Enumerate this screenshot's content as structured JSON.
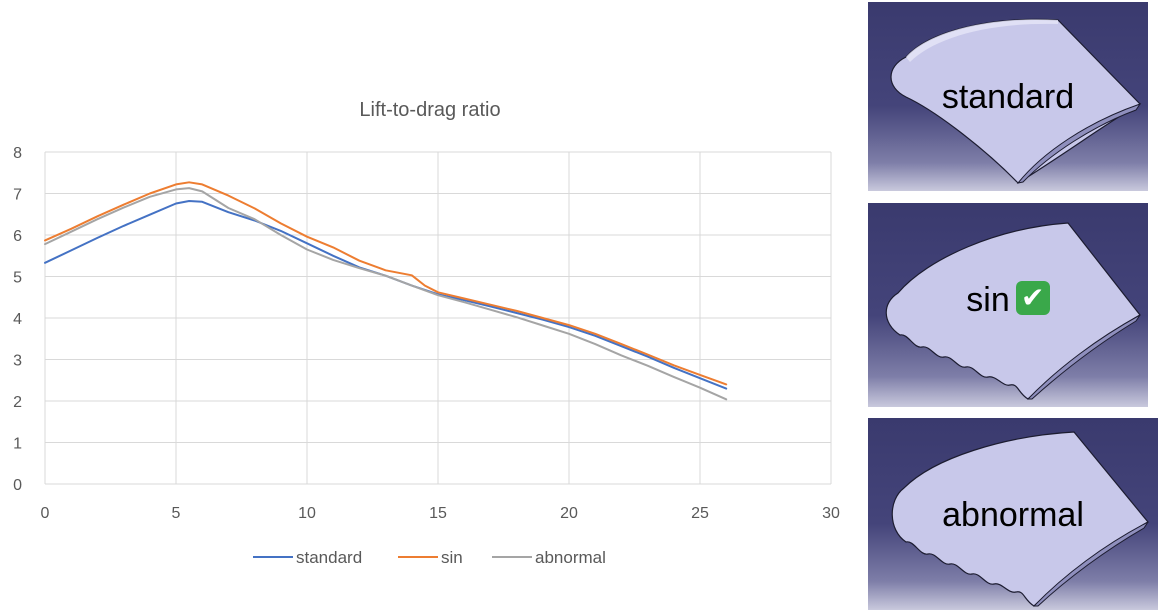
{
  "chart_data": {
    "type": "line",
    "title": "Lift-to-drag ratio",
    "xlabel": "",
    "ylabel": "",
    "xlim": [
      0,
      30
    ],
    "ylim": [
      0,
      8
    ],
    "xticks": [
      0,
      5,
      10,
      15,
      20,
      25,
      30
    ],
    "yticks": [
      0,
      1,
      2,
      3,
      4,
      5,
      6,
      7,
      8
    ],
    "grid": true,
    "legend": "bottom",
    "series": [
      {
        "name": "standard",
        "color": "#4472c4",
        "x": [
          0,
          1,
          2,
          3,
          4,
          5,
          5.5,
          6,
          7,
          8,
          9,
          10,
          11,
          12,
          13,
          14,
          15,
          16,
          17,
          18,
          19,
          20,
          21,
          22,
          23,
          24,
          25,
          26
        ],
        "y": [
          5.33,
          5.63,
          5.93,
          6.22,
          6.49,
          6.76,
          6.82,
          6.8,
          6.55,
          6.35,
          6.1,
          5.8,
          5.5,
          5.22,
          5.02,
          4.78,
          4.57,
          4.43,
          4.28,
          4.12,
          3.96,
          3.78,
          3.57,
          3.32,
          3.07,
          2.8,
          2.55,
          2.3
        ]
      },
      {
        "name": "sin",
        "color": "#ed7d31",
        "x": [
          0,
          1,
          2,
          3,
          4,
          5,
          5.5,
          6,
          7,
          8,
          9,
          10,
          11,
          12,
          13,
          14,
          14.5,
          15,
          16,
          17,
          18,
          19,
          20,
          21,
          22,
          23,
          24,
          25,
          26
        ],
        "y": [
          5.87,
          6.15,
          6.45,
          6.73,
          7.0,
          7.22,
          7.27,
          7.22,
          6.95,
          6.64,
          6.28,
          5.96,
          5.7,
          5.38,
          5.15,
          5.03,
          4.78,
          4.62,
          4.47,
          4.32,
          4.17,
          4.0,
          3.83,
          3.62,
          3.37,
          3.12,
          2.86,
          2.63,
          2.4
        ]
      },
      {
        "name": "abnormal",
        "color": "#a5a5a5",
        "x": [
          0,
          1,
          2,
          3,
          4,
          5,
          5.5,
          6,
          7,
          8,
          9,
          10,
          11,
          12,
          13,
          14,
          15,
          16,
          17,
          18,
          19,
          20,
          21,
          22,
          23,
          24,
          25,
          26
        ],
        "y": [
          5.78,
          6.08,
          6.38,
          6.66,
          6.92,
          7.1,
          7.13,
          7.05,
          6.65,
          6.38,
          6.0,
          5.65,
          5.4,
          5.2,
          5.02,
          4.78,
          4.55,
          4.38,
          4.2,
          4.02,
          3.82,
          3.62,
          3.37,
          3.1,
          2.85,
          2.58,
          2.32,
          2.04
        ]
      }
    ]
  },
  "panels": [
    {
      "label": "standard"
    },
    {
      "label": "sin",
      "badge": "✔"
    },
    {
      "label": "abnormal"
    }
  ]
}
